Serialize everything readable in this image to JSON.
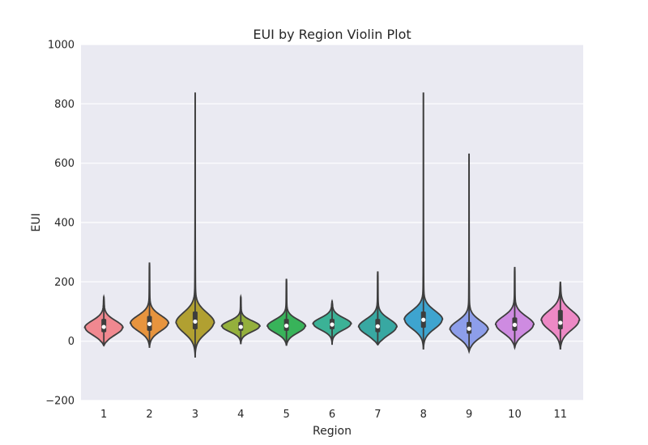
{
  "chart_data": {
    "type": "violin",
    "title": "EUI by Region Violin Plot",
    "xlabel": "Region",
    "ylabel": "EUI",
    "ylim": [
      -200,
      1000
    ],
    "yticks": [
      -200,
      0,
      200,
      400,
      600,
      800,
      1000
    ],
    "ytick_labels": [
      "−200",
      "0",
      "200",
      "400",
      "600",
      "800",
      "1000"
    ],
    "grid": true,
    "background": "#EAEAF2",
    "grid_color": "#FFFFFF",
    "categories": [
      "1",
      "2",
      "3",
      "4",
      "5",
      "6",
      "7",
      "8",
      "9",
      "10",
      "11"
    ],
    "series": [
      {
        "category": "1",
        "color": "#F08890",
        "min": -15,
        "max": 150,
        "q1": 30,
        "median": 48,
        "q3": 75,
        "mode": 45,
        "spread": 24
      },
      {
        "category": "2",
        "color": "#E7943E",
        "min": -22,
        "max": 265,
        "q1": 35,
        "median": 58,
        "q3": 85,
        "mode": 60,
        "spread": 26
      },
      {
        "category": "3",
        "color": "#B1A031",
        "min": -55,
        "max": 838,
        "q1": 40,
        "median": 66,
        "q3": 100,
        "mode": 62,
        "spread": 34
      },
      {
        "category": "4",
        "color": "#94B03C",
        "min": -10,
        "max": 150,
        "q1": 35,
        "median": 48,
        "q3": 65,
        "mode": 50,
        "spread": 18
      },
      {
        "category": "5",
        "color": "#38B35A",
        "min": -15,
        "max": 210,
        "q1": 35,
        "median": 52,
        "q3": 75,
        "mode": 50,
        "spread": 22
      },
      {
        "category": "6",
        "color": "#3BB296",
        "min": -12,
        "max": 135,
        "q1": 40,
        "median": 56,
        "q3": 75,
        "mode": 58,
        "spread": 20
      },
      {
        "category": "7",
        "color": "#38A8A2",
        "min": -12,
        "max": 235,
        "q1": 30,
        "median": 50,
        "q3": 75,
        "mode": 48,
        "spread": 26
      },
      {
        "category": "8",
        "color": "#3EA4CF",
        "min": -28,
        "max": 838,
        "q1": 45,
        "median": 72,
        "q3": 100,
        "mode": 72,
        "spread": 30
      },
      {
        "category": "9",
        "color": "#8D9EEA",
        "min": -35,
        "max": 632,
        "q1": 25,
        "median": 42,
        "q3": 65,
        "mode": 40,
        "spread": 28
      },
      {
        "category": "10",
        "color": "#CE8BE1",
        "min": -22,
        "max": 250,
        "q1": 35,
        "median": 55,
        "q3": 80,
        "mode": 55,
        "spread": 28
      },
      {
        "category": "11",
        "color": "#ED89C5",
        "min": -28,
        "max": 200,
        "q1": 40,
        "median": 62,
        "q3": 105,
        "mode": 70,
        "spread": 32
      }
    ]
  }
}
